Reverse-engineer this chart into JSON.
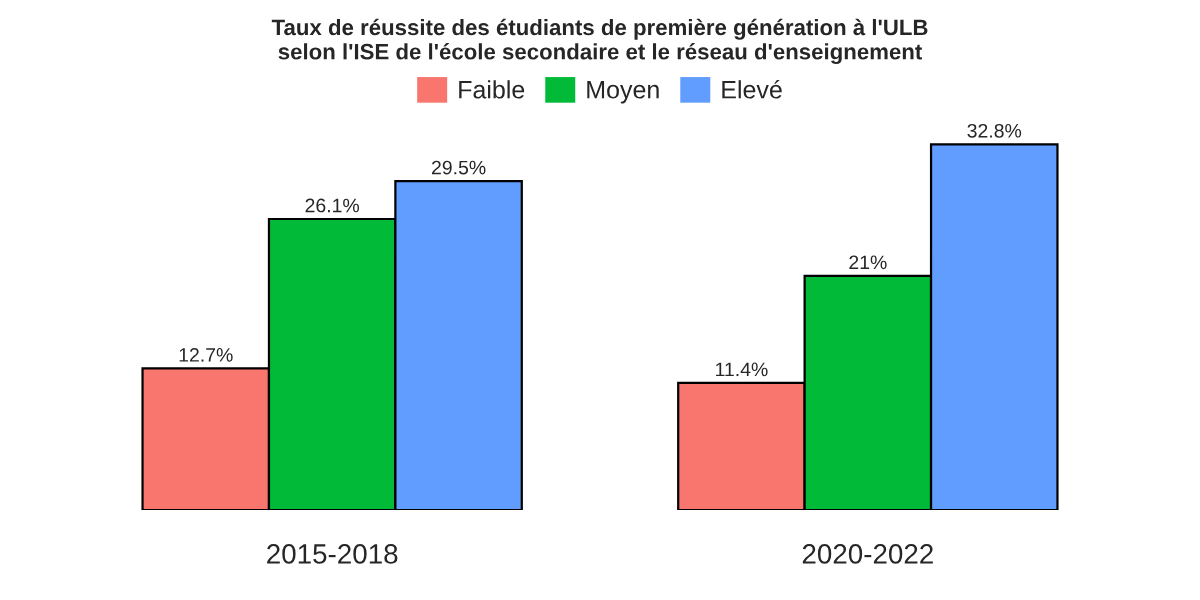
{
  "chart_data": {
    "type": "bar",
    "title": "Taux de réussite des étudiants de première génération à l'ULB\nselon l'ISE de l'école secondaire et le réseau d'enseignement",
    "categories": [
      "2015-2018",
      "2020-2022"
    ],
    "series": [
      {
        "name": "Faible",
        "color": "#f8766d",
        "values": [
          12.7,
          11.4
        ],
        "value_labels": [
          "12.7%",
          "11.4%"
        ]
      },
      {
        "name": "Moyen",
        "color": "#00ba38",
        "values": [
          26.1,
          21
        ],
        "value_labels": [
          "26.1%",
          "21%"
        ]
      },
      {
        "name": "Elevé",
        "color": "#619cff",
        "values": [
          29.5,
          32.8
        ],
        "value_labels": [
          "29.5%",
          "32.8%"
        ]
      }
    ],
    "legend": "top",
    "grid": false,
    "tick_labels": "x"
  }
}
